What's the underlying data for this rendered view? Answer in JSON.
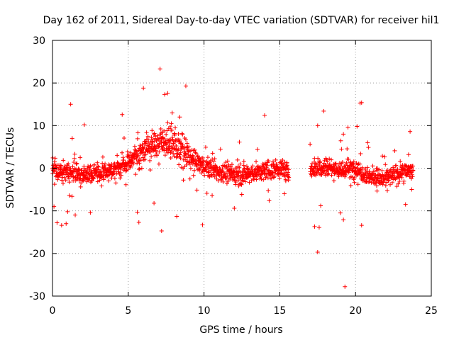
{
  "chart_data": {
    "type": "scatter",
    "title": "Day 162 of 2011, Sidereal Day-to-day VTEC variation (SDTVAR) for receiver hil1",
    "xlabel": "GPS time / hours",
    "ylabel": "SDTVAR / TECUs",
    "xlim": [
      0,
      25
    ],
    "ylim": [
      -30,
      30
    ],
    "xticks": [
      0,
      5,
      10,
      15,
      20,
      25
    ],
    "yticks": [
      -30,
      -20,
      -10,
      0,
      10,
      20,
      30
    ],
    "xtick_labels": [
      "0",
      "5",
      "10",
      "15",
      "20",
      "25"
    ],
    "ytick_labels": [
      "-30",
      "-20",
      "-10",
      "0",
      "10",
      "20",
      "30"
    ],
    "grid": true,
    "marker": "+",
    "color": "#ff0000",
    "data_gaps": [
      [
        15.6,
        17.0
      ]
    ],
    "trend": {
      "description": "dense band of points following a diurnal trend",
      "x": [
        0,
        1,
        2,
        3,
        4,
        5,
        6,
        7,
        7.5,
        8,
        8.5,
        9,
        10,
        11,
        12,
        13,
        14,
        15,
        15.5,
        17.2,
        18,
        19,
        20,
        21,
        22,
        23,
        23.8
      ],
      "y": [
        -0.5,
        -1.0,
        -1.5,
        -1.2,
        -0.5,
        1.5,
        4.5,
        6.0,
        6.5,
        5.5,
        4.0,
        2.5,
        0.5,
        -1.0,
        -1.5,
        -1.2,
        -0.8,
        0.0,
        -1.0,
        0.0,
        0.5,
        -0.5,
        0.0,
        -2.0,
        -2.5,
        -1.0,
        -0.5
      ]
    },
    "outliers": [
      {
        "x": 7.1,
        "y": 23.3
      },
      {
        "x": 8.8,
        "y": 19.3
      },
      {
        "x": 6.0,
        "y": 18.8
      },
      {
        "x": 7.4,
        "y": 17.3
      },
      {
        "x": 7.6,
        "y": 17.6
      },
      {
        "x": 1.2,
        "y": 15.0
      },
      {
        "x": 20.3,
        "y": 15.3
      },
      {
        "x": 20.4,
        "y": 15.4
      },
      {
        "x": 17.9,
        "y": 13.4
      },
      {
        "x": 7.9,
        "y": 13.0
      },
      {
        "x": 4.6,
        "y": 12.6
      },
      {
        "x": 14.0,
        "y": 12.4
      },
      {
        "x": 8.4,
        "y": 12.0
      },
      {
        "x": 2.1,
        "y": 10.2
      },
      {
        "x": 17.5,
        "y": 10.0
      },
      {
        "x": 19.5,
        "y": 9.6
      },
      {
        "x": 20.1,
        "y": 9.8
      },
      {
        "x": 1.3,
        "y": 7.0
      },
      {
        "x": 20.8,
        "y": 6.0
      },
      {
        "x": 19.2,
        "y": 8.0
      },
      {
        "x": 23.6,
        "y": 8.6
      },
      {
        "x": 1.0,
        "y": -10.2
      },
      {
        "x": 0.3,
        "y": -12.8
      },
      {
        "x": 0.6,
        "y": -13.4
      },
      {
        "x": 0.9,
        "y": -13.0
      },
      {
        "x": 1.5,
        "y": -11.0
      },
      {
        "x": 2.5,
        "y": -10.4
      },
      {
        "x": 5.7,
        "y": -12.7
      },
      {
        "x": 7.2,
        "y": -14.7
      },
      {
        "x": 8.2,
        "y": -11.3
      },
      {
        "x": 9.9,
        "y": -13.3
      },
      {
        "x": 12.0,
        "y": -9.4
      },
      {
        "x": 14.3,
        "y": -7.6
      },
      {
        "x": 17.3,
        "y": -13.7
      },
      {
        "x": 17.6,
        "y": -13.9
      },
      {
        "x": 17.5,
        "y": -19.7
      },
      {
        "x": 19.2,
        "y": -12.1
      },
      {
        "x": 19.3,
        "y": -27.8
      },
      {
        "x": 20.4,
        "y": -13.4
      },
      {
        "x": 0.1,
        "y": -9.0
      },
      {
        "x": 6.7,
        "y": -8.2
      },
      {
        "x": 5.6,
        "y": -10.3
      },
      {
        "x": 19.0,
        "y": -10.5
      },
      {
        "x": 17.7,
        "y": -8.8
      },
      {
        "x": 23.3,
        "y": -8.5
      }
    ]
  }
}
